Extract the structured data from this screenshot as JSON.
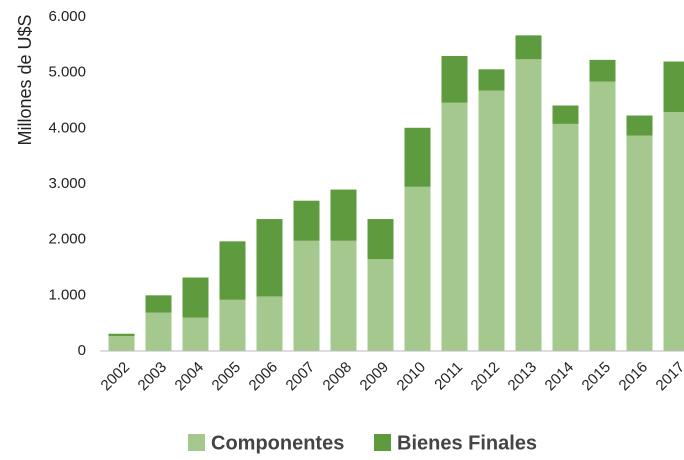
{
  "chart_data": {
    "type": "stacked_bar",
    "y_label": "Millones de U$S",
    "categories": [
      "2002",
      "2003",
      "2004",
      "2005",
      "2006",
      "2007",
      "2008",
      "2009",
      "2010",
      "2011",
      "2012",
      "2013",
      "2014",
      "2015",
      "2016",
      "2017"
    ],
    "series": [
      {
        "name": "Componentes",
        "color": "#a5c88f",
        "values": [
          270,
          690,
          600,
          920,
          980,
          1980,
          1980,
          1650,
          2950,
          4460,
          4680,
          5240,
          4080,
          4840,
          3870,
          4290
        ]
      },
      {
        "name": "Bienes Finales",
        "color": "#5e9a3e",
        "values": [
          40,
          310,
          720,
          1050,
          1390,
          720,
          920,
          720,
          1060,
          840,
          380,
          430,
          330,
          390,
          360,
          910
        ]
      }
    ],
    "ylim": [
      0,
      6000
    ],
    "yticks": [
      0,
      {
        "value": 1000,
        "label": "1.000"
      },
      {
        "value": 2000,
        "label": "2.000"
      },
      {
        "value": 3000,
        "label": "3.000"
      },
      {
        "value": 4000,
        "label": "4.000"
      },
      {
        "value": 5000,
        "label": "5.000"
      },
      {
        "value": 6000,
        "label": "6.000"
      }
    ],
    "grid": false,
    "legend": "bottom"
  }
}
